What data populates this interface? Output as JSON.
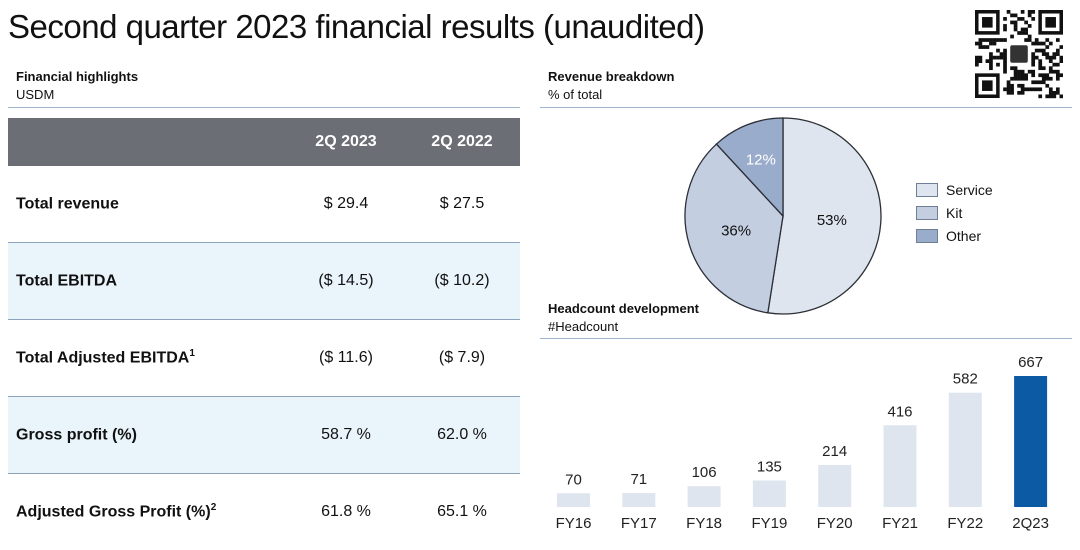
{
  "title": "Second quarter 2023 financial results (unaudited)",
  "financial": {
    "heading": "Financial highlights",
    "unit": "USDM",
    "columns": [
      "2Q 2023",
      "2Q 2022"
    ],
    "rows": [
      {
        "label": "Total revenue",
        "sup": "",
        "v1": "$ 29.4",
        "v2": "$ 27.5"
      },
      {
        "label": "Total EBITDA",
        "sup": "",
        "v1": "($ 14.5)",
        "v2": "($ 10.2)"
      },
      {
        "label": "Total Adjusted EBITDA",
        "sup": "1",
        "v1": "($ 11.6)",
        "v2": "($ 7.9)"
      },
      {
        "label": "Gross profit (%)",
        "sup": "",
        "v1": "58.7 %",
        "v2": "62.0 %"
      },
      {
        "label": "Adjusted Gross Profit (%)",
        "sup": "2",
        "v1": "61.8 %",
        "v2": "65.1 %"
      }
    ]
  },
  "revenue": {
    "heading": "Revenue breakdown",
    "unit": "% of total"
  },
  "headcount": {
    "heading": "Headcount development",
    "unit": "#Headcount"
  },
  "colors": {
    "service": "#dfe5ef",
    "kit": "#c3cee1",
    "other": "#9aaccb",
    "bar": "#dfe5ef",
    "bar_highlight": "#0d5aa4",
    "stroke": "#2b2f36"
  },
  "chart_data": [
    {
      "type": "pie",
      "title": "Revenue breakdown",
      "subtitle": "% of total",
      "labels": [
        "Service",
        "Kit",
        "Other"
      ],
      "values": [
        53,
        36,
        12
      ],
      "value_labels": [
        "53%",
        "36%",
        "12%"
      ],
      "legend": "right"
    },
    {
      "type": "bar",
      "title": "Headcount development",
      "subtitle": "#Headcount",
      "categories": [
        "FY16",
        "FY17",
        "FY18",
        "FY19",
        "FY20",
        "FY21",
        "FY22",
        "2Q23"
      ],
      "values": [
        70,
        71,
        106,
        135,
        214,
        416,
        582,
        667
      ],
      "highlight": "2Q23"
    }
  ]
}
